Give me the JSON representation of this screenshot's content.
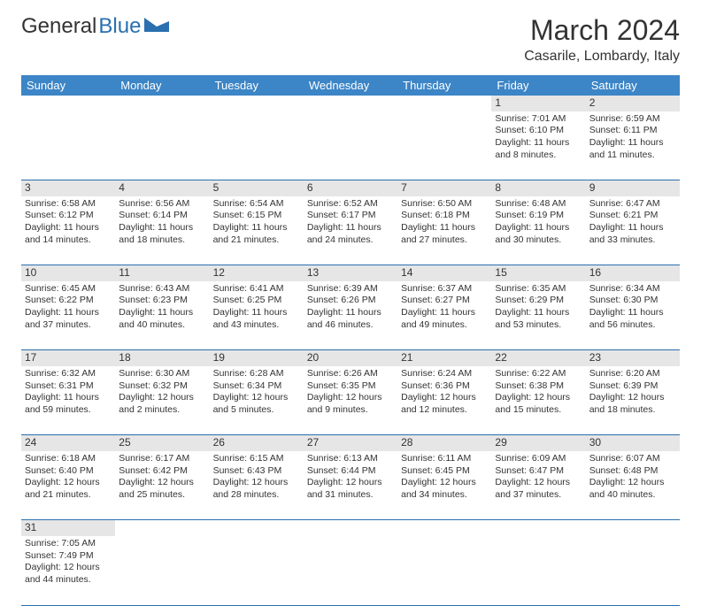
{
  "logo": {
    "text1": "General",
    "text2": "Blue"
  },
  "title": "March 2024",
  "location": "Casarile, Lombardy, Italy",
  "colors": {
    "header_bg": "#3c85c6",
    "header_text": "#ffffff",
    "daynum_bg": "#e6e6e6",
    "border": "#2a6faf",
    "logo_blue": "#2a6faf",
    "body_text": "#333333"
  },
  "fonts": {
    "title_size": 32,
    "location_size": 16,
    "header_size": 13,
    "cell_size": 10.5,
    "daynum_size": 12
  },
  "weekdays": [
    "Sunday",
    "Monday",
    "Tuesday",
    "Wednesday",
    "Thursday",
    "Friday",
    "Saturday"
  ],
  "weeks": [
    [
      null,
      null,
      null,
      null,
      null,
      {
        "d": "1",
        "sr": "Sunrise: 7:01 AM",
        "ss": "Sunset: 6:10 PM",
        "dl1": "Daylight: 11 hours",
        "dl2": "and 8 minutes."
      },
      {
        "d": "2",
        "sr": "Sunrise: 6:59 AM",
        "ss": "Sunset: 6:11 PM",
        "dl1": "Daylight: 11 hours",
        "dl2": "and 11 minutes."
      }
    ],
    [
      {
        "d": "3",
        "sr": "Sunrise: 6:58 AM",
        "ss": "Sunset: 6:12 PM",
        "dl1": "Daylight: 11 hours",
        "dl2": "and 14 minutes."
      },
      {
        "d": "4",
        "sr": "Sunrise: 6:56 AM",
        "ss": "Sunset: 6:14 PM",
        "dl1": "Daylight: 11 hours",
        "dl2": "and 18 minutes."
      },
      {
        "d": "5",
        "sr": "Sunrise: 6:54 AM",
        "ss": "Sunset: 6:15 PM",
        "dl1": "Daylight: 11 hours",
        "dl2": "and 21 minutes."
      },
      {
        "d": "6",
        "sr": "Sunrise: 6:52 AM",
        "ss": "Sunset: 6:17 PM",
        "dl1": "Daylight: 11 hours",
        "dl2": "and 24 minutes."
      },
      {
        "d": "7",
        "sr": "Sunrise: 6:50 AM",
        "ss": "Sunset: 6:18 PM",
        "dl1": "Daylight: 11 hours",
        "dl2": "and 27 minutes."
      },
      {
        "d": "8",
        "sr": "Sunrise: 6:48 AM",
        "ss": "Sunset: 6:19 PM",
        "dl1": "Daylight: 11 hours",
        "dl2": "and 30 minutes."
      },
      {
        "d": "9",
        "sr": "Sunrise: 6:47 AM",
        "ss": "Sunset: 6:21 PM",
        "dl1": "Daylight: 11 hours",
        "dl2": "and 33 minutes."
      }
    ],
    [
      {
        "d": "10",
        "sr": "Sunrise: 6:45 AM",
        "ss": "Sunset: 6:22 PM",
        "dl1": "Daylight: 11 hours",
        "dl2": "and 37 minutes."
      },
      {
        "d": "11",
        "sr": "Sunrise: 6:43 AM",
        "ss": "Sunset: 6:23 PM",
        "dl1": "Daylight: 11 hours",
        "dl2": "and 40 minutes."
      },
      {
        "d": "12",
        "sr": "Sunrise: 6:41 AM",
        "ss": "Sunset: 6:25 PM",
        "dl1": "Daylight: 11 hours",
        "dl2": "and 43 minutes."
      },
      {
        "d": "13",
        "sr": "Sunrise: 6:39 AM",
        "ss": "Sunset: 6:26 PM",
        "dl1": "Daylight: 11 hours",
        "dl2": "and 46 minutes."
      },
      {
        "d": "14",
        "sr": "Sunrise: 6:37 AM",
        "ss": "Sunset: 6:27 PM",
        "dl1": "Daylight: 11 hours",
        "dl2": "and 49 minutes."
      },
      {
        "d": "15",
        "sr": "Sunrise: 6:35 AM",
        "ss": "Sunset: 6:29 PM",
        "dl1": "Daylight: 11 hours",
        "dl2": "and 53 minutes."
      },
      {
        "d": "16",
        "sr": "Sunrise: 6:34 AM",
        "ss": "Sunset: 6:30 PM",
        "dl1": "Daylight: 11 hours",
        "dl2": "and 56 minutes."
      }
    ],
    [
      {
        "d": "17",
        "sr": "Sunrise: 6:32 AM",
        "ss": "Sunset: 6:31 PM",
        "dl1": "Daylight: 11 hours",
        "dl2": "and 59 minutes."
      },
      {
        "d": "18",
        "sr": "Sunrise: 6:30 AM",
        "ss": "Sunset: 6:32 PM",
        "dl1": "Daylight: 12 hours",
        "dl2": "and 2 minutes."
      },
      {
        "d": "19",
        "sr": "Sunrise: 6:28 AM",
        "ss": "Sunset: 6:34 PM",
        "dl1": "Daylight: 12 hours",
        "dl2": "and 5 minutes."
      },
      {
        "d": "20",
        "sr": "Sunrise: 6:26 AM",
        "ss": "Sunset: 6:35 PM",
        "dl1": "Daylight: 12 hours",
        "dl2": "and 9 minutes."
      },
      {
        "d": "21",
        "sr": "Sunrise: 6:24 AM",
        "ss": "Sunset: 6:36 PM",
        "dl1": "Daylight: 12 hours",
        "dl2": "and 12 minutes."
      },
      {
        "d": "22",
        "sr": "Sunrise: 6:22 AM",
        "ss": "Sunset: 6:38 PM",
        "dl1": "Daylight: 12 hours",
        "dl2": "and 15 minutes."
      },
      {
        "d": "23",
        "sr": "Sunrise: 6:20 AM",
        "ss": "Sunset: 6:39 PM",
        "dl1": "Daylight: 12 hours",
        "dl2": "and 18 minutes."
      }
    ],
    [
      {
        "d": "24",
        "sr": "Sunrise: 6:18 AM",
        "ss": "Sunset: 6:40 PM",
        "dl1": "Daylight: 12 hours",
        "dl2": "and 21 minutes."
      },
      {
        "d": "25",
        "sr": "Sunrise: 6:17 AM",
        "ss": "Sunset: 6:42 PM",
        "dl1": "Daylight: 12 hours",
        "dl2": "and 25 minutes."
      },
      {
        "d": "26",
        "sr": "Sunrise: 6:15 AM",
        "ss": "Sunset: 6:43 PM",
        "dl1": "Daylight: 12 hours",
        "dl2": "and 28 minutes."
      },
      {
        "d": "27",
        "sr": "Sunrise: 6:13 AM",
        "ss": "Sunset: 6:44 PM",
        "dl1": "Daylight: 12 hours",
        "dl2": "and 31 minutes."
      },
      {
        "d": "28",
        "sr": "Sunrise: 6:11 AM",
        "ss": "Sunset: 6:45 PM",
        "dl1": "Daylight: 12 hours",
        "dl2": "and 34 minutes."
      },
      {
        "d": "29",
        "sr": "Sunrise: 6:09 AM",
        "ss": "Sunset: 6:47 PM",
        "dl1": "Daylight: 12 hours",
        "dl2": "and 37 minutes."
      },
      {
        "d": "30",
        "sr": "Sunrise: 6:07 AM",
        "ss": "Sunset: 6:48 PM",
        "dl1": "Daylight: 12 hours",
        "dl2": "and 40 minutes."
      }
    ],
    [
      {
        "d": "31",
        "sr": "Sunrise: 7:05 AM",
        "ss": "Sunset: 7:49 PM",
        "dl1": "Daylight: 12 hours",
        "dl2": "and 44 minutes."
      },
      null,
      null,
      null,
      null,
      null,
      null
    ]
  ]
}
